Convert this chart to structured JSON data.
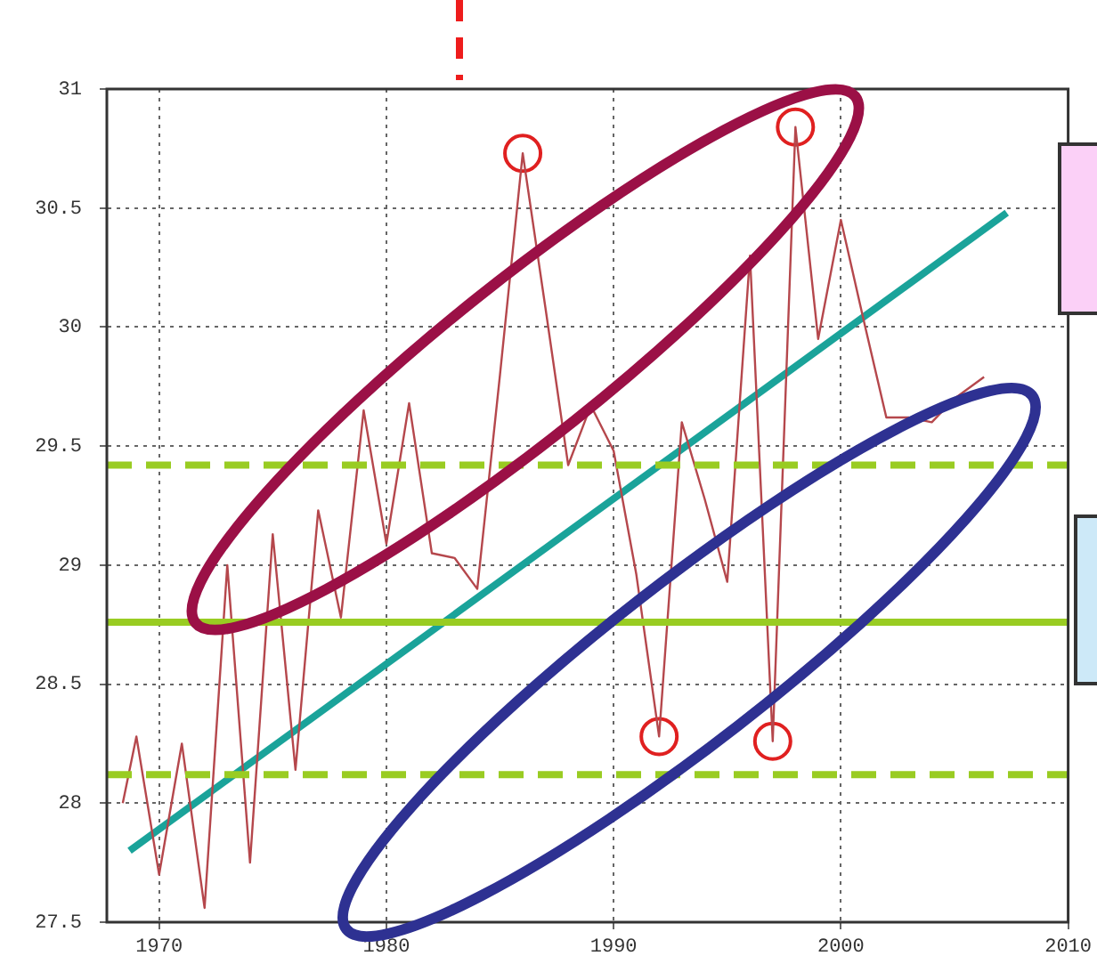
{
  "chart_data": {
    "type": "line",
    "x": [
      1968.4,
      1969,
      1970,
      1971,
      1972,
      1973,
      1974,
      1975,
      1976,
      1977,
      1978,
      1979,
      1980,
      1981,
      1982,
      1983,
      1984,
      1985,
      1986,
      1987,
      1988,
      1989,
      1990,
      1991,
      1992,
      1993,
      1994,
      1995,
      1996,
      1997,
      1998,
      1999,
      2000,
      2001,
      2002,
      2003,
      2004,
      2005,
      2006.3
    ],
    "series": [
      {
        "color": "#b5474c",
        "values": [
          28.0,
          28.28,
          27.7,
          28.25,
          27.56,
          29.0,
          27.75,
          29.13,
          28.14,
          29.23,
          28.78,
          29.65,
          29.09,
          29.68,
          29.05,
          29.03,
          28.9,
          29.8,
          30.73,
          30.08,
          29.42,
          29.67,
          29.48,
          28.96,
          28.28,
          29.6,
          29.28,
          28.93,
          30.3,
          28.26,
          30.84,
          29.95,
          30.45,
          30.03,
          29.62,
          29.62,
          29.6,
          29.7,
          29.79
        ]
      },
      {
        "type": "line",
        "x": [
          1968.7,
          2007.3
        ],
        "color": "#1aa39a",
        "values": [
          27.8,
          30.48
        ]
      },
      {
        "type": "scatter",
        "x": [
          1986,
          1998,
          1992,
          1997
        ],
        "color": "#e02020",
        "marker": "circle",
        "values": [
          30.73,
          30.84,
          28.28,
          28.26
        ]
      }
    ],
    "xlim": [
      1967.7,
      2010
    ],
    "xticks": [
      1970,
      1980,
      1990,
      2000,
      2010
    ],
    "ylim": [
      27.5,
      31
    ],
    "yticks": [
      27.5,
      28,
      28.5,
      29,
      29.5,
      30,
      30.5,
      31
    ],
    "grid": true,
    "legend": false,
    "marker": "none",
    "line_style": "solid",
    "ref_lines": [
      {
        "axis": "y",
        "value": 28.76,
        "color": "#99cc22",
        "line_style": "solid"
      },
      {
        "axis": "y",
        "value": 29.42,
        "color": "#99cc22",
        "line_style": "dashed"
      },
      {
        "axis": "y",
        "value": 28.12,
        "color": "#99cc22",
        "line_style": "dashed"
      }
    ]
  }
}
